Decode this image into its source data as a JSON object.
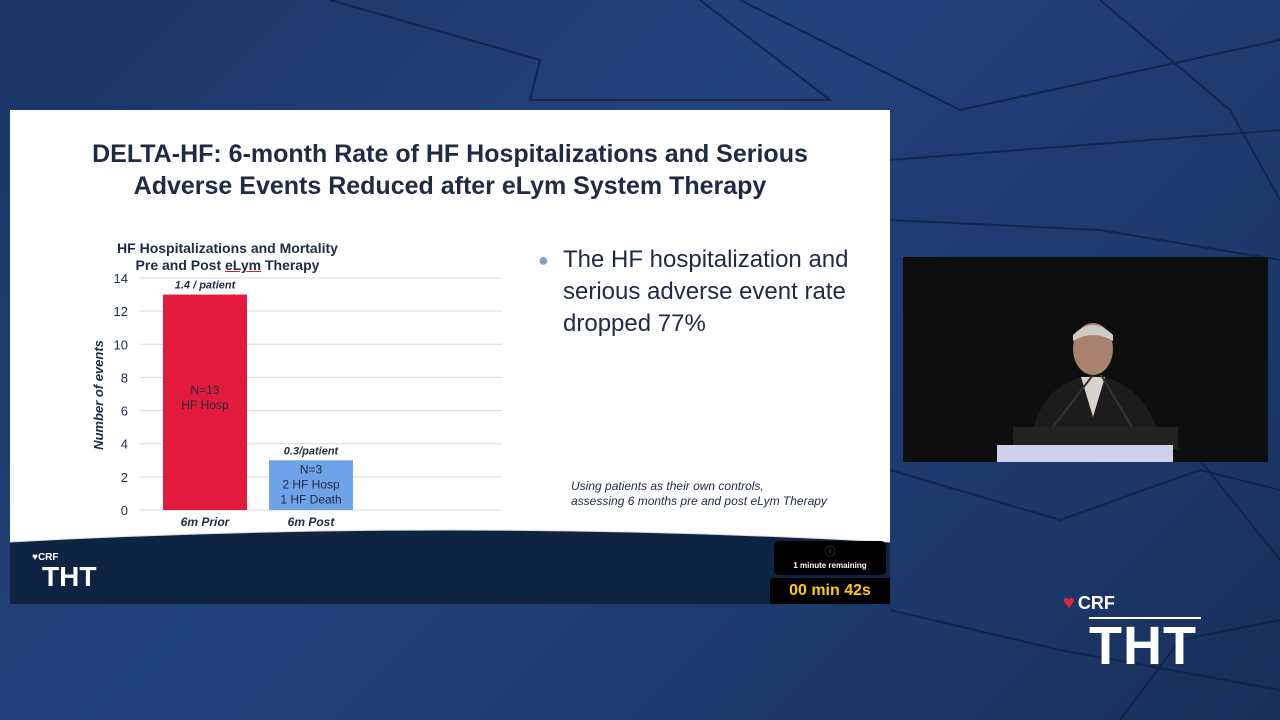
{
  "slide": {
    "title_line1": "DELTA-HF:  6-month Rate of HF Hospitalizations and Serious",
    "title_line2": "Adverse Events Reduced after eLym System Therapy",
    "bullet": "The HF hospitalization and serious adverse event rate dropped 77%",
    "footnote_line1": "Using patients as their own controls,",
    "footnote_line2": "assessing 6 months pre and post eLym Therapy"
  },
  "chart_data": {
    "type": "bar",
    "title_line1": "HF Hospitalizations and Mortality",
    "title_line2_a": "Pre and Post ",
    "title_line2_b": "eLym",
    "title_line2_c": " Therapy",
    "ylabel": "Number of events",
    "ylim": [
      0,
      14
    ],
    "yticks": [
      0,
      2,
      4,
      6,
      8,
      10,
      12,
      14
    ],
    "categories": [
      "6m Prior",
      "6m Post"
    ],
    "values": [
      13,
      3
    ],
    "top_labels": [
      "1.4 / patient",
      "0.3/patient"
    ],
    "inner_labels": [
      [
        "N=13",
        "HF Hosp"
      ],
      [
        "N=3",
        "2 HF Hosp",
        "1 HF Death"
      ]
    ],
    "colors": [
      "#e21b3c",
      "#6fa3e8"
    ]
  },
  "footer": {
    "logo_crf": "CRF",
    "logo_tht": "THT"
  },
  "timer": {
    "notice": "1 minute remaining",
    "time": "00 min 42s"
  },
  "brand": {
    "crf": "CRF",
    "tht": "THT",
    "accent": "#e0263c"
  }
}
